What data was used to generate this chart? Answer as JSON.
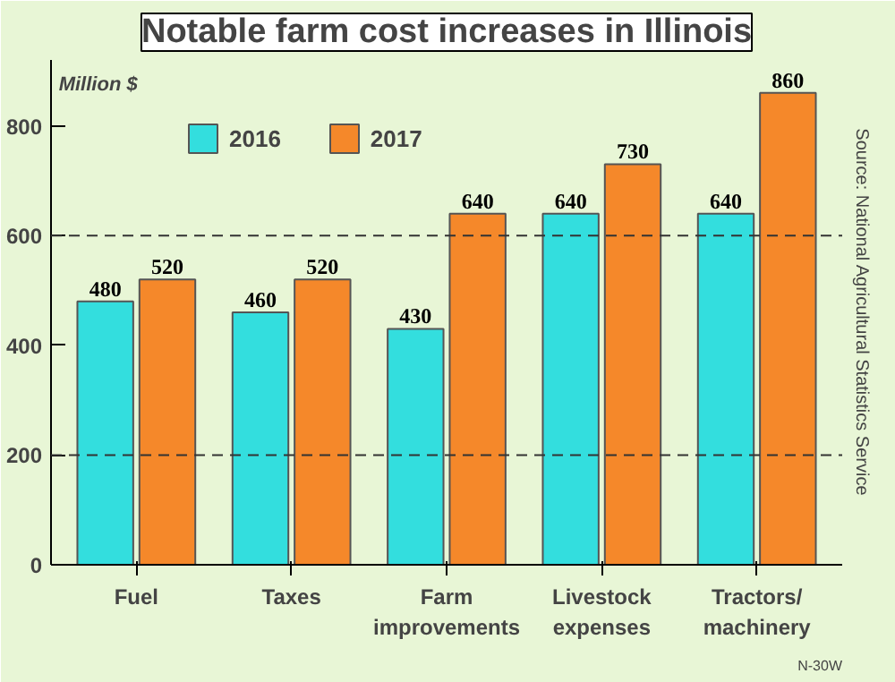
{
  "chart_data": {
    "type": "bar",
    "title": "Notable farm cost increases in Illinois",
    "ylabel": "Million $",
    "categories": [
      "Fuel",
      "Taxes",
      "Farm\nimprovements",
      "Livestock\nexpenses",
      "Tractors/\nmachinery"
    ],
    "series": [
      {
        "name": "2016",
        "color": "#33dede",
        "values": [
          480,
          460,
          430,
          640,
          640
        ]
      },
      {
        "name": "2017",
        "color": "#f5882a",
        "values": [
          520,
          520,
          640,
          730,
          860
        ]
      }
    ],
    "ylim": [
      0,
      920
    ],
    "yticks": [
      0,
      200,
      400,
      600,
      800
    ],
    "data_labels": true,
    "legend": "top left",
    "grid": false,
    "ref_lines": [
      {
        "axis": "y",
        "value": 200,
        "line_style": "dashed"
      },
      {
        "axis": "y",
        "value": 600,
        "line_style": "dashed"
      }
    ],
    "annotations": [
      "Source: National Agricultural Statistics Service",
      "N-30W"
    ]
  }
}
